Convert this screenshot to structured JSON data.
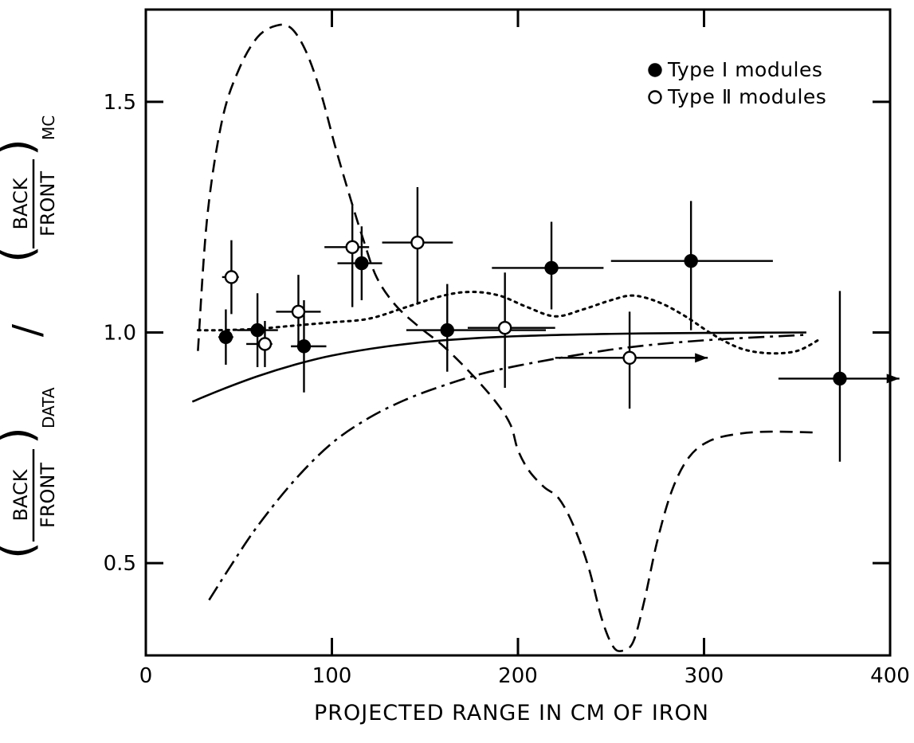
{
  "chart_data": {
    "type": "scatter",
    "xlabel": "PROJECTED RANGE IN CM OF IRON",
    "ylabel": {
      "data_num": "BACK",
      "data_den": "FRONT",
      "data_sub": "DATA",
      "mc_num": "BACK",
      "mc_den": "FRONT",
      "mc_sub": "MC",
      "separator": "/"
    },
    "xlim": [
      0,
      400
    ],
    "ylim": [
      0.3,
      1.7
    ],
    "x_ticks": [
      {
        "value": 0,
        "label": "0"
      },
      {
        "value": 100,
        "label": "100"
      },
      {
        "value": 200,
        "label": "200"
      },
      {
        "value": 300,
        "label": "300"
      },
      {
        "value": 400,
        "label": "400"
      }
    ],
    "y_ticks": [
      {
        "value": 0.5,
        "label": "0.5"
      },
      {
        "value": 1.0,
        "label": "1.0"
      },
      {
        "value": 1.5,
        "label": "1.5"
      }
    ],
    "legend": {
      "position": "top-right",
      "entries": [
        {
          "marker": "filled-circle",
          "symbol": "●",
          "label": "Type Ⅰ modules"
        },
        {
          "marker": "open-circle",
          "symbol": "○",
          "label": "Type Ⅱ modules"
        }
      ]
    },
    "series": [
      {
        "marker": "filled-circle",
        "points": [
          {
            "x": 43,
            "y": 0.99,
            "xerr": [
              4,
              4
            ],
            "yerr": [
              0.06,
              0.06
            ]
          },
          {
            "x": 60,
            "y": 1.005,
            "xerr": [
              11,
              11
            ],
            "yerr": [
              0.08,
              0.08
            ]
          },
          {
            "x": 85,
            "y": 0.97,
            "xerr": [
              7,
              12
            ],
            "yerr": [
              0.1,
              0.1
            ]
          },
          {
            "x": 116,
            "y": 1.15,
            "xerr": [
              13,
              11
            ],
            "yerr": [
              0.08,
              0.08
            ]
          },
          {
            "x": 162,
            "y": 1.005,
            "xerr": [
              22,
              53
            ],
            "yerr": [
              0.09,
              0.1
            ]
          },
          {
            "x": 218,
            "y": 1.14,
            "xerr": [
              32,
              28
            ],
            "yerr": [
              0.09,
              0.1
            ]
          },
          {
            "x": 293,
            "y": 1.155,
            "xerr": [
              43,
              44
            ],
            "yerr": [
              0.15,
              0.13
            ]
          },
          {
            "x": 373,
            "y": 0.9,
            "xerr": [
              33,
              32
            ],
            "yerr": [
              0.18,
              0.19
            ],
            "arrow": true
          }
        ]
      },
      {
        "marker": "open-circle",
        "points": [
          {
            "x": 46,
            "y": 1.12,
            "xerr": [
              5,
              4
            ],
            "yerr": [
              0.08,
              0.08
            ]
          },
          {
            "x": 64,
            "y": 0.975,
            "xerr": [
              10,
              4
            ],
            "yerr": [
              0.05,
              0.05
            ]
          },
          {
            "x": 82,
            "y": 1.045,
            "xerr": [
              12,
              12
            ],
            "yerr": [
              0.08,
              0.08
            ]
          },
          {
            "x": 111,
            "y": 1.185,
            "xerr": [
              15,
              9
            ],
            "yerr": [
              0.13,
              0.09
            ]
          },
          {
            "x": 146,
            "y": 1.195,
            "xerr": [
              19,
              19
            ],
            "yerr": [
              0.13,
              0.12
            ]
          },
          {
            "x": 193,
            "y": 1.01,
            "xerr": [
              20,
              27
            ],
            "yerr": [
              0.13,
              0.12
            ]
          },
          {
            "x": 260,
            "y": 0.945,
            "xerr": [
              40,
              42
            ],
            "yerr": [
              0.11,
              0.1
            ],
            "arrow": true
          }
        ]
      }
    ],
    "curves": [
      {
        "style": "dashed",
        "points": [
          [
            28,
            0.96
          ],
          [
            33,
            1.25
          ],
          [
            41,
            1.46
          ],
          [
            50,
            1.57
          ],
          [
            60,
            1.64
          ],
          [
            70,
            1.665
          ],
          [
            78,
            1.66
          ],
          [
            86,
            1.61
          ],
          [
            94,
            1.52
          ],
          [
            102,
            1.4
          ],
          [
            110,
            1.29
          ],
          [
            117,
            1.2
          ],
          [
            124,
            1.12
          ],
          [
            134,
            1.06
          ],
          [
            146,
            1.015
          ],
          [
            160,
            0.97
          ],
          [
            175,
            0.91
          ],
          [
            188,
            0.85
          ],
          [
            196,
            0.8
          ],
          [
            200,
            0.745
          ],
          [
            206,
            0.7
          ],
          [
            214,
            0.665
          ],
          [
            222,
            0.64
          ],
          [
            230,
            0.58
          ],
          [
            238,
            0.49
          ],
          [
            245,
            0.38
          ],
          [
            251,
            0.32
          ],
          [
            256,
            0.31
          ],
          [
            262,
            0.33
          ],
          [
            268,
            0.42
          ],
          [
            275,
            0.55
          ],
          [
            283,
            0.66
          ],
          [
            292,
            0.73
          ],
          [
            303,
            0.765
          ],
          [
            318,
            0.78
          ],
          [
            335,
            0.785
          ],
          [
            362,
            0.783
          ]
        ]
      },
      {
        "style": "dotted",
        "points": [
          [
            28,
            1.005
          ],
          [
            40,
            1.005
          ],
          [
            60,
            1.008
          ],
          [
            80,
            1.015
          ],
          [
            100,
            1.022
          ],
          [
            120,
            1.03
          ],
          [
            140,
            1.055
          ],
          [
            160,
            1.08
          ],
          [
            175,
            1.088
          ],
          [
            190,
            1.08
          ],
          [
            205,
            1.055
          ],
          [
            220,
            1.035
          ],
          [
            235,
            1.05
          ],
          [
            250,
            1.07
          ],
          [
            262,
            1.08
          ],
          [
            276,
            1.065
          ],
          [
            290,
            1.035
          ],
          [
            305,
            0.995
          ],
          [
            320,
            0.965
          ],
          [
            335,
            0.955
          ],
          [
            350,
            0.96
          ],
          [
            362,
            0.985
          ]
        ]
      },
      {
        "style": "solid",
        "points": [
          [
            25,
            0.85
          ],
          [
            40,
            0.875
          ],
          [
            60,
            0.905
          ],
          [
            80,
            0.93
          ],
          [
            100,
            0.95
          ],
          [
            130,
            0.97
          ],
          [
            160,
            0.983
          ],
          [
            200,
            0.992
          ],
          [
            250,
            0.997
          ],
          [
            300,
            0.999
          ],
          [
            355,
            1.0
          ]
        ]
      },
      {
        "style": "dash-dot",
        "points": [
          [
            34,
            0.42
          ],
          [
            45,
            0.49
          ],
          [
            60,
            0.58
          ],
          [
            80,
            0.68
          ],
          [
            100,
            0.76
          ],
          [
            120,
            0.815
          ],
          [
            140,
            0.855
          ],
          [
            160,
            0.885
          ],
          [
            180,
            0.91
          ],
          [
            200,
            0.928
          ],
          [
            230,
            0.95
          ],
          [
            260,
            0.968
          ],
          [
            300,
            0.983
          ],
          [
            355,
            0.995
          ]
        ]
      }
    ],
    "grid": false
  }
}
